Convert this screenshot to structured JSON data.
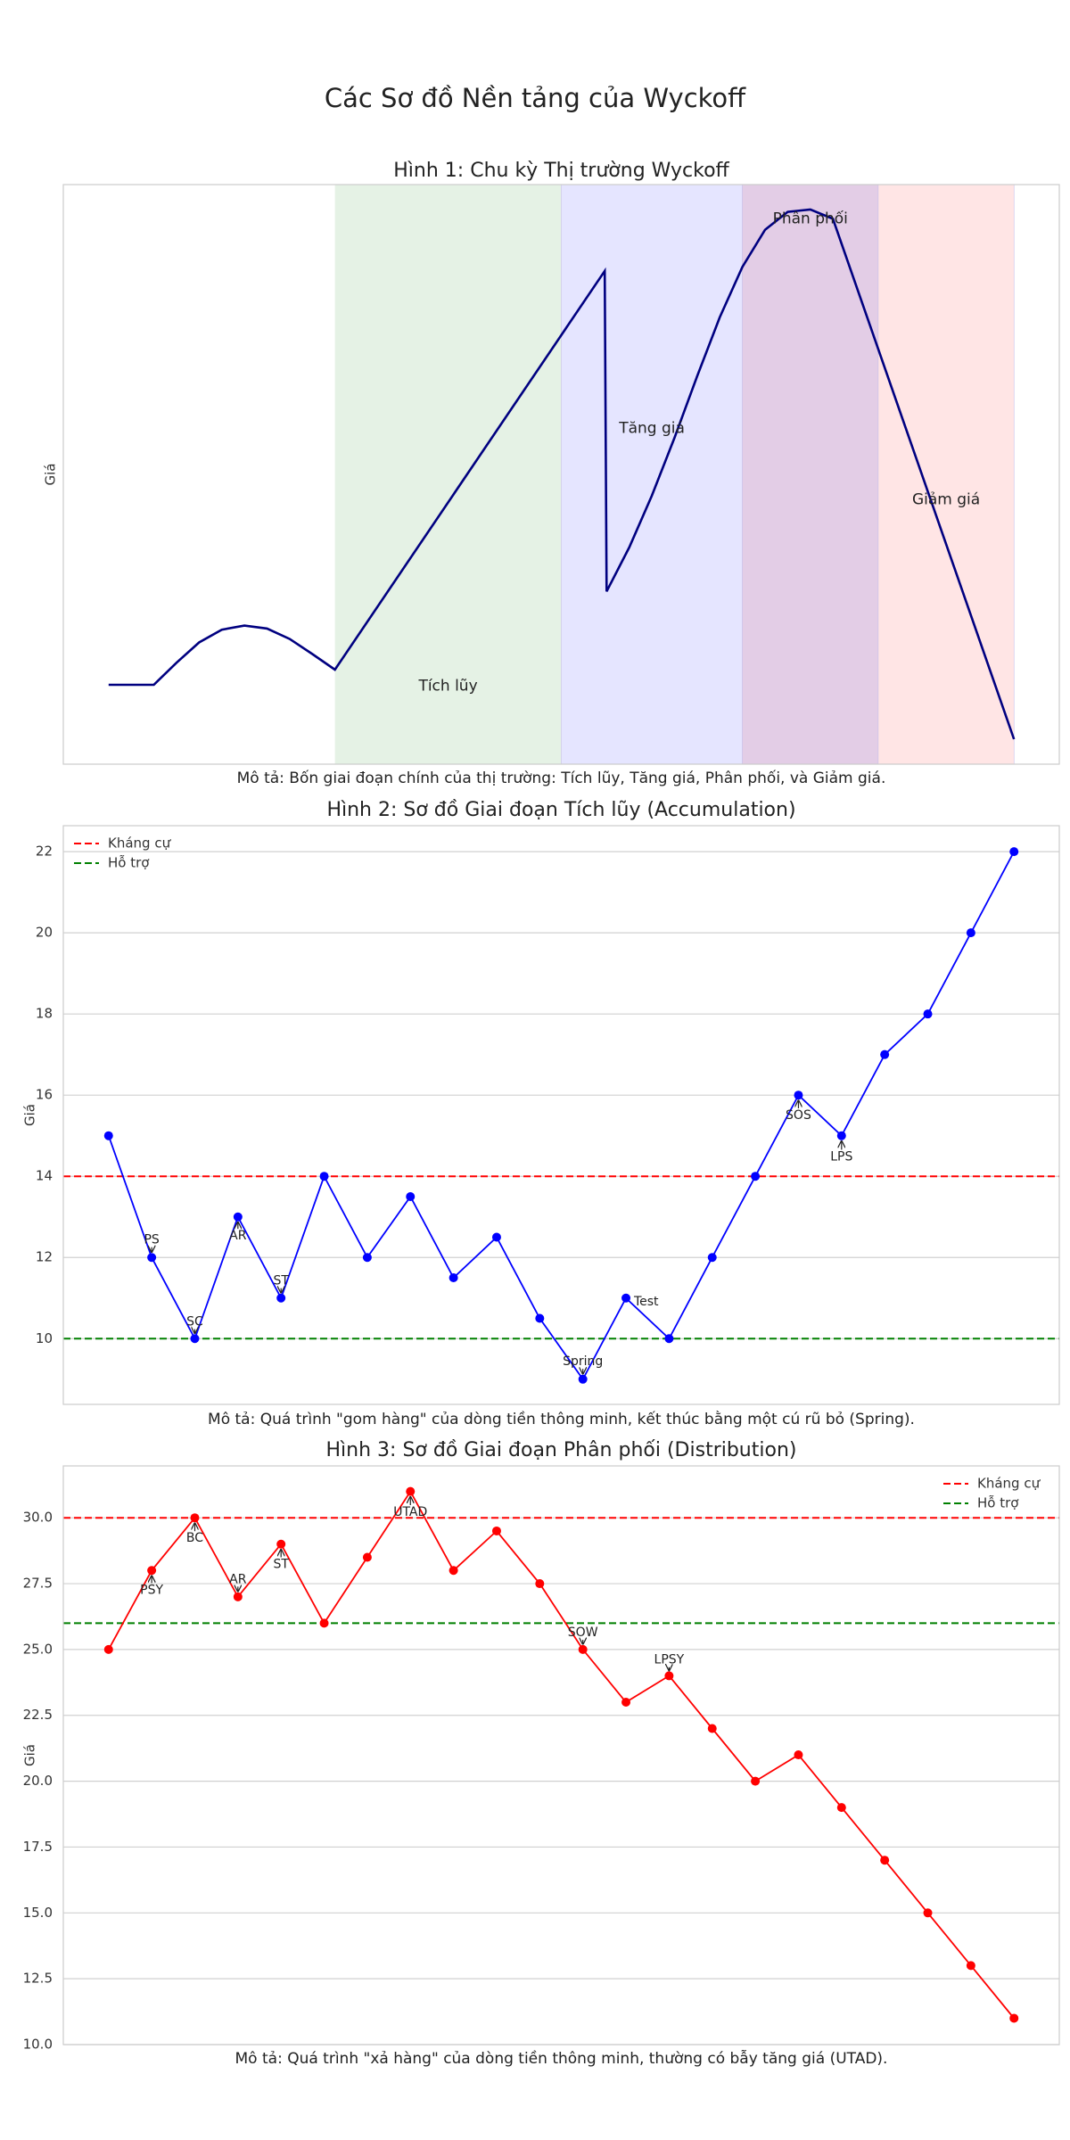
{
  "title": "Các Sơ đồ Nền tảng của Wyckoff",
  "chart_data": [
    {
      "type": "line",
      "title": "Hình 1: Chu kỳ Thị trường Wyckoff",
      "ylabel": "Giá",
      "caption": "Mô tả: Bốn giai đoạn chính của thị trường: Tích lũy, Tăng giá, Phân phối, và Giảm giá.",
      "xlim": [
        -0.5,
        10.5
      ],
      "ylim": [
        0,
        100
      ],
      "grid": false,
      "x": [
        0,
        0.5,
        0.75,
        1.0,
        1.25,
        1.5,
        1.75,
        2.0,
        2.25,
        2.5,
        5.48,
        5.5,
        5.75,
        6.0,
        6.25,
        6.5,
        6.75,
        7.0,
        7.25,
        7.5,
        7.75,
        8.0,
        10
      ],
      "series": [
        {
          "color": "#000080",
          "values": [
            13.7,
            13.7,
            17.5,
            21,
            23.2,
            23.9,
            23.4,
            21.6,
            19,
            16.3,
            85.1,
            29.8,
            37.4,
            46.3,
            56.3,
            66.9,
            77.1,
            85.8,
            92.2,
            95.3,
            95.7,
            94.1,
            4.3
          ]
        }
      ],
      "phases": [
        {
          "label": "Tích lũy",
          "start": 2.5,
          "end": 5,
          "color": "#e5f2e5",
          "label_x": 3.75,
          "label_y": 13.5
        },
        {
          "label": "Tăng giá",
          "start": 5,
          "end": 7,
          "color": "#e5e5ff",
          "label_x": 6.0,
          "label_y": 57.9
        },
        {
          "label": "Phân phối",
          "start": 7,
          "end": 8.5,
          "color": "#e3cde6",
          "label_x": 7.75,
          "label_y": 94.1
        },
        {
          "label": "Giảm giá",
          "start": 8.5,
          "end": 10,
          "color": "#ffe5e5",
          "label_x": 9.25,
          "label_y": 45.6
        }
      ]
    },
    {
      "type": "line",
      "title": "Hình 2: Sơ đồ Giai đoạn Tích lũy (Accumulation)",
      "ylabel": "Giá",
      "caption": "Mô tả: Quá trình \"gom hàng\" của dòng tiền thông minh, kết thúc bằng một cú rũ bỏ (Spring).",
      "xlim": [
        -1.05,
        22.05
      ],
      "ylim": [
        8.38,
        22.64
      ],
      "yticks": [
        10,
        12,
        14,
        16,
        18,
        20,
        22
      ],
      "grid": true,
      "legend": "upper left",
      "markers": true,
      "series": [
        {
          "color": "#0000ff",
          "values": [
            15,
            12,
            10,
            13,
            11,
            14,
            12,
            13.5,
            11.5,
            12.5,
            10.5,
            9,
            11,
            10,
            12,
            14,
            16,
            15,
            17,
            18,
            20,
            22
          ]
        }
      ],
      "lines": [
        {
          "name": "Kháng cự",
          "value": 14,
          "color": "#ff0000"
        },
        {
          "name": "Hỗ trợ",
          "value": 10,
          "color": "#008000"
        }
      ],
      "annotations": [
        {
          "text": "PS",
          "point": 1,
          "x": 1,
          "y": 12.43
        },
        {
          "text": "SC",
          "point": 2,
          "x": 2,
          "y": 10.41
        },
        {
          "text": "AR",
          "point": 3,
          "x": 3,
          "y": 12.53
        },
        {
          "text": "ST",
          "point": 4,
          "x": 4,
          "y": 11.42
        },
        {
          "text": "Spring",
          "point": 11,
          "x": 11,
          "y": 9.43
        },
        {
          "text": "Test",
          "point": 12,
          "x": 12.47,
          "y": 10.91
        },
        {
          "text": "SOS",
          "point": 16,
          "x": 16,
          "y": 15.5
        },
        {
          "text": "LPS",
          "point": 17,
          "x": 17,
          "y": 14.48
        }
      ]
    },
    {
      "type": "line",
      "title": "Hình 3: Sơ đồ Giai đoạn Phân phối (Distribution)",
      "ylabel": "Giá",
      "caption": "Mô tả: Quá trình \"xả hàng\" của dòng tiền thông minh, thường có bẫy tăng giá (UTAD).",
      "xlim": [
        -1.05,
        22.05
      ],
      "ylim": [
        10,
        31.97
      ],
      "yticks": [
        {
          "value": 10,
          "label": "10.0"
        },
        {
          "value": 12.5,
          "label": "12.5"
        },
        {
          "value": 15,
          "label": "15.0"
        },
        {
          "value": 17.5,
          "label": "17.5"
        },
        {
          "value": 20,
          "label": "20.0"
        },
        {
          "value": 22.5,
          "label": "22.5"
        },
        {
          "value": 25,
          "label": "25.0"
        },
        {
          "value": 27.5,
          "label": "27.5"
        },
        {
          "value": 30,
          "label": "30.0"
        }
      ],
      "grid": true,
      "legend": "upper right",
      "markers": true,
      "series": [
        {
          "color": "#ff0000",
          "values": [
            25,
            28,
            30,
            27,
            29,
            26,
            28.5,
            31,
            28,
            29.5,
            27.5,
            25,
            23,
            24,
            22,
            20,
            21,
            19,
            17,
            15,
            13,
            11
          ]
        }
      ],
      "lines": [
        {
          "name": "Kháng cự",
          "value": 30,
          "color": "#ff0000"
        },
        {
          "name": "Hỗ trợ",
          "value": 26,
          "color": "#008000"
        }
      ],
      "annotations": [
        {
          "text": "PSY",
          "point": 1,
          "x": 1,
          "y": 27.25
        },
        {
          "text": "BC",
          "point": 2,
          "x": 2,
          "y": 29.22
        },
        {
          "text": "AR",
          "point": 3,
          "x": 3,
          "y": 27.66
        },
        {
          "text": "ST",
          "point": 4,
          "x": 4,
          "y": 28.23
        },
        {
          "text": "UTAD",
          "point": 7,
          "x": 7,
          "y": 30.21
        },
        {
          "text": "SOW",
          "point": 11,
          "x": 11,
          "y": 25.64
        },
        {
          "text": "LPSY",
          "point": 13,
          "x": 13,
          "y": 24.6
        }
      ]
    }
  ]
}
